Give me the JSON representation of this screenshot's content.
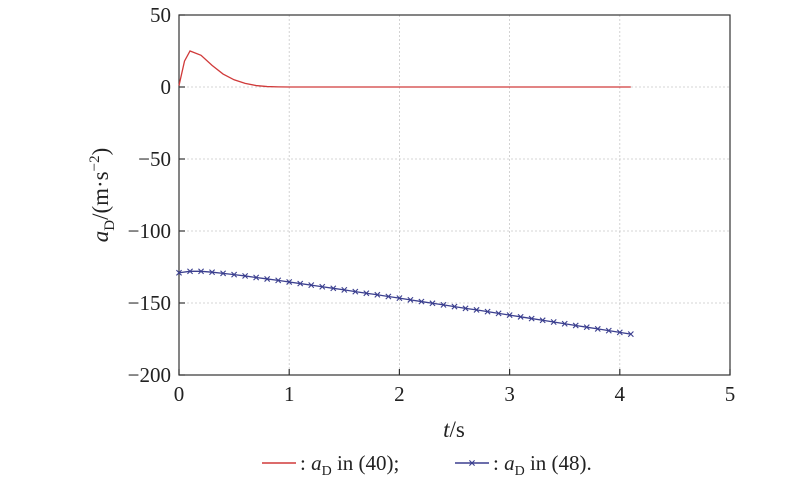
{
  "chart_data": {
    "type": "line",
    "xlabel": {
      "main": "t",
      "unit": "/s"
    },
    "ylabel": {
      "main": "a",
      "sub": "D",
      "unit_pre": "/(m·s",
      "unit_sup": "−2",
      "unit_post": ")"
    },
    "xlim": [
      0,
      5
    ],
    "ylim": [
      -200,
      50
    ],
    "x_ticks": [
      0,
      1,
      2,
      3,
      4,
      5
    ],
    "x_tick_labels": [
      "0",
      "1",
      "2",
      "3",
      "4",
      "5"
    ],
    "y_ticks": [
      50,
      0,
      -50,
      -100,
      -150,
      -200
    ],
    "y_tick_labels": [
      "50",
      "0",
      "−50",
      "−100",
      "−150",
      "−200"
    ],
    "grid": true,
    "legend_position": "bottom",
    "series": [
      {
        "color": "#d03a3a",
        "marker": "none",
        "legend": {
          "sym": "a",
          "sub": "D",
          "text": " in (40);"
        },
        "x": [
          0,
          0.05,
          0.1,
          0.2,
          0.3,
          0.4,
          0.5,
          0.6,
          0.7,
          0.8,
          0.9,
          1.0,
          1.5,
          2.0,
          2.5,
          3.0,
          3.5,
          4.1
        ],
        "y": [
          1,
          18,
          25,
          22,
          15,
          9,
          5,
          2.5,
          1,
          0.3,
          0.1,
          0,
          0,
          0,
          0,
          0,
          0,
          0
        ]
      },
      {
        "color": "#3b3f8f",
        "marker": "x",
        "legend": {
          "sym": "a",
          "sub": "D",
          "text": " in (48)."
        },
        "x": [
          0,
          0.1,
          0.2,
          0.3,
          0.4,
          0.5,
          0.6,
          0.7,
          0.8,
          0.9,
          1.0,
          1.1,
          1.2,
          1.3,
          1.4,
          1.5,
          1.6,
          1.7,
          1.8,
          1.9,
          2.0,
          2.1,
          2.2,
          2.3,
          2.4,
          2.5,
          2.6,
          2.7,
          2.8,
          2.9,
          3.0,
          3.1,
          3.2,
          3.3,
          3.4,
          3.5,
          3.6,
          3.7,
          3.8,
          3.9,
          4.0,
          4.1
        ],
        "y": [
          -129,
          -128,
          -128,
          -128.6,
          -129.4,
          -130.3,
          -131.2,
          -132.3,
          -133.3,
          -134.3,
          -135.4,
          -136.5,
          -137.6,
          -138.7,
          -139.8,
          -140.9,
          -142.1,
          -143.2,
          -144.3,
          -145.5,
          -146.6,
          -147.8,
          -149,
          -150.2,
          -151.3,
          -152.5,
          -153.7,
          -154.8,
          -156,
          -157.2,
          -158.4,
          -159.6,
          -160.8,
          -162,
          -163.2,
          -164.4,
          -165.6,
          -166.8,
          -168,
          -169.2,
          -170.4,
          -171.6
        ]
      }
    ]
  }
}
